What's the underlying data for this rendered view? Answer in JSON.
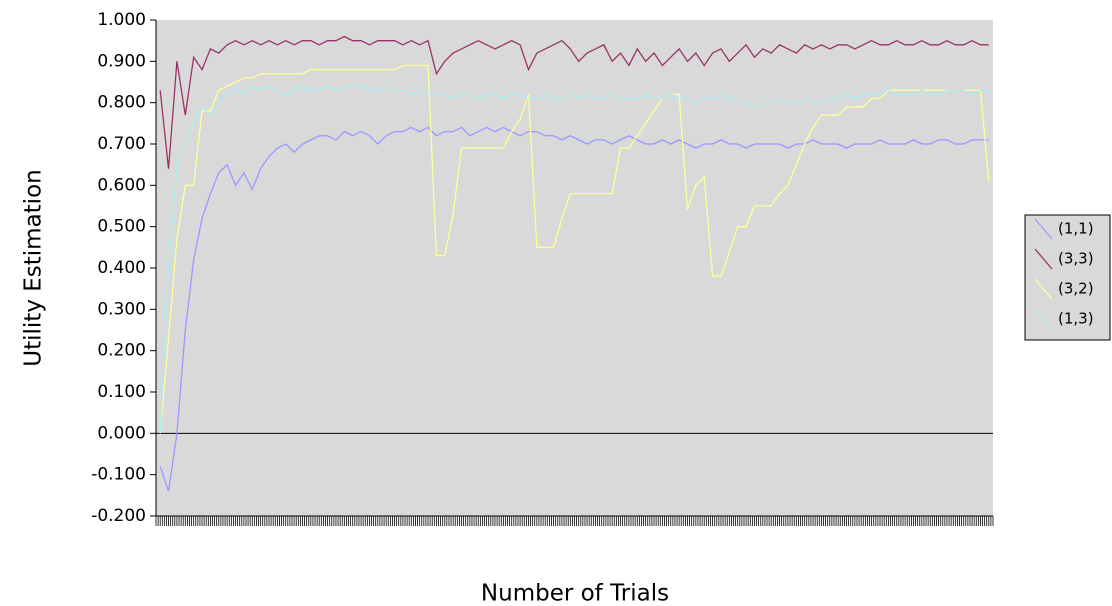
{
  "chart_data": {
    "type": "line",
    "x_label": "Number of Trials",
    "y_label": "Utility Estimation",
    "categories": [
      null,
      null,
      null,
      null,
      null,
      null,
      null,
      null,
      null,
      null,
      null,
      null,
      null,
      null,
      null,
      null,
      null,
      null,
      null,
      null,
      null,
      null,
      null,
      null,
      null,
      null,
      null,
      null,
      null,
      null,
      null,
      null,
      null,
      null,
      null,
      null,
      null,
      null,
      null,
      null,
      null,
      null,
      null,
      null,
      null,
      null,
      null,
      null,
      null,
      null,
      null,
      null,
      null,
      null,
      null,
      null,
      null,
      null,
      null,
      null,
      null,
      null,
      null,
      null,
      null,
      null,
      null,
      null,
      null,
      null,
      null,
      null,
      null,
      null,
      null,
      null,
      null,
      null,
      null,
      null,
      null,
      null,
      null,
      null,
      null,
      null,
      null,
      null,
      null,
      null,
      null,
      null,
      null,
      null,
      null,
      null,
      null,
      null,
      null,
      null
    ],
    "ylim": [
      -0.2,
      1.0
    ],
    "yticks": [
      {
        "value": -0.2,
        "label": "-0.200"
      },
      {
        "value": -0.1,
        "label": "-0.100"
      },
      {
        "value": 0,
        "label": "0.000"
      },
      {
        "value": 0.1,
        "label": "0.100"
      },
      {
        "value": 0.2,
        "label": "0.200"
      },
      {
        "value": 0.3,
        "label": "0.300"
      },
      {
        "value": 0.4,
        "label": "0.400"
      },
      {
        "value": 0.5,
        "label": "0.500"
      },
      {
        "value": 0.6,
        "label": "0.600"
      },
      {
        "value": 0.7,
        "label": "0.700"
      },
      {
        "value": 0.8,
        "label": "0.800"
      },
      {
        "value": 0.9,
        "label": "0.900"
      },
      {
        "value": 1.0,
        "label": "1.000"
      }
    ],
    "grid": false,
    "legend": "right",
    "series": [
      {
        "name": "(1,1)",
        "color": "#9999ff",
        "values": [
          -0.08,
          -0.14,
          0.0,
          0.25,
          0.42,
          0.52,
          0.58,
          0.63,
          0.65,
          0.6,
          0.63,
          0.59,
          0.64,
          0.67,
          0.69,
          0.7,
          0.68,
          0.7,
          0.71,
          0.72,
          0.72,
          0.71,
          0.73,
          0.72,
          0.73,
          0.72,
          0.7,
          0.72,
          0.73,
          0.73,
          0.74,
          0.73,
          0.74,
          0.72,
          0.73,
          0.73,
          0.74,
          0.72,
          0.73,
          0.74,
          0.73,
          0.74,
          0.73,
          0.72,
          0.73,
          0.73,
          0.72,
          0.72,
          0.71,
          0.72,
          0.71,
          0.7,
          0.71,
          0.71,
          0.7,
          0.71,
          0.72,
          0.71,
          0.7,
          0.7,
          0.71,
          0.7,
          0.71,
          0.7,
          0.69,
          0.7,
          0.7,
          0.71,
          0.7,
          0.7,
          0.69,
          0.7,
          0.7,
          0.7,
          0.7,
          0.69,
          0.7,
          0.7,
          0.71,
          0.7,
          0.7,
          0.7,
          0.69,
          0.7,
          0.7,
          0.7,
          0.71,
          0.7,
          0.7,
          0.7,
          0.71,
          0.7,
          0.7,
          0.71,
          0.71,
          0.7,
          0.7,
          0.71,
          0.71,
          0.71
        ]
      },
      {
        "name": "(3,3)",
        "color": "#993366",
        "values": [
          0.83,
          0.64,
          0.9,
          0.77,
          0.91,
          0.88,
          0.93,
          0.92,
          0.94,
          0.95,
          0.94,
          0.95,
          0.94,
          0.95,
          0.94,
          0.95,
          0.94,
          0.95,
          0.95,
          0.94,
          0.95,
          0.95,
          0.96,
          0.95,
          0.95,
          0.94,
          0.95,
          0.95,
          0.95,
          0.94,
          0.95,
          0.94,
          0.95,
          0.87,
          0.9,
          0.92,
          0.93,
          0.94,
          0.95,
          0.94,
          0.93,
          0.94,
          0.95,
          0.94,
          0.88,
          0.92,
          0.93,
          0.94,
          0.95,
          0.93,
          0.9,
          0.92,
          0.93,
          0.94,
          0.9,
          0.92,
          0.89,
          0.93,
          0.9,
          0.92,
          0.89,
          0.91,
          0.93,
          0.9,
          0.92,
          0.89,
          0.92,
          0.93,
          0.9,
          0.92,
          0.94,
          0.91,
          0.93,
          0.92,
          0.94,
          0.93,
          0.92,
          0.94,
          0.93,
          0.94,
          0.93,
          0.94,
          0.94,
          0.93,
          0.94,
          0.95,
          0.94,
          0.94,
          0.95,
          0.94,
          0.94,
          0.95,
          0.94,
          0.94,
          0.95,
          0.94,
          0.94,
          0.95,
          0.94,
          0.94
        ]
      },
      {
        "name": "(3,2)",
        "color": "#ffff99",
        "values": [
          0.0,
          0.23,
          0.47,
          0.6,
          0.6,
          0.78,
          0.78,
          0.83,
          0.84,
          0.85,
          0.86,
          0.86,
          0.87,
          0.87,
          0.87,
          0.87,
          0.87,
          0.87,
          0.88,
          0.88,
          0.88,
          0.88,
          0.88,
          0.88,
          0.88,
          0.88,
          0.88,
          0.88,
          0.88,
          0.89,
          0.89,
          0.89,
          0.89,
          0.43,
          0.43,
          0.53,
          0.69,
          0.69,
          0.69,
          0.69,
          0.69,
          0.69,
          0.73,
          0.76,
          0.82,
          0.45,
          0.45,
          0.45,
          0.52,
          0.58,
          0.58,
          0.58,
          0.58,
          0.58,
          0.58,
          0.69,
          0.69,
          0.72,
          0.75,
          0.78,
          0.81,
          0.82,
          0.82,
          0.54,
          0.6,
          0.62,
          0.38,
          0.38,
          0.44,
          0.5,
          0.5,
          0.55,
          0.55,
          0.55,
          0.58,
          0.6,
          0.65,
          0.7,
          0.74,
          0.77,
          0.77,
          0.77,
          0.79,
          0.79,
          0.79,
          0.81,
          0.81,
          0.83,
          0.83,
          0.83,
          0.83,
          0.83,
          0.83,
          0.83,
          0.83,
          0.83,
          0.83,
          0.83,
          0.83,
          0.61
        ]
      },
      {
        "name": "(1,3)",
        "color": "#aaeeee",
        "values": [
          0.0,
          0.4,
          0.65,
          0.7,
          0.75,
          0.79,
          0.77,
          0.8,
          0.82,
          0.84,
          0.82,
          0.84,
          0.83,
          0.84,
          0.83,
          0.82,
          0.83,
          0.84,
          0.83,
          0.83,
          0.84,
          0.83,
          0.84,
          0.84,
          0.84,
          0.83,
          0.83,
          0.84,
          0.83,
          0.83,
          0.82,
          0.83,
          0.82,
          0.82,
          0.82,
          0.81,
          0.82,
          0.82,
          0.81,
          0.82,
          0.82,
          0.81,
          0.82,
          0.82,
          0.81,
          0.81,
          0.82,
          0.81,
          0.81,
          0.82,
          0.81,
          0.82,
          0.81,
          0.81,
          0.82,
          0.81,
          0.81,
          0.81,
          0.82,
          0.81,
          0.81,
          0.82,
          0.81,
          0.81,
          0.8,
          0.81,
          0.81,
          0.82,
          0.81,
          0.8,
          0.8,
          0.79,
          0.8,
          0.8,
          0.81,
          0.8,
          0.8,
          0.81,
          0.8,
          0.8,
          0.81,
          0.81,
          0.82,
          0.81,
          0.82,
          0.82,
          0.82,
          0.83,
          0.82,
          0.82,
          0.82,
          0.83,
          0.82,
          0.82,
          0.83,
          0.83,
          0.83,
          0.82,
          0.83,
          0.83
        ]
      }
    ]
  }
}
